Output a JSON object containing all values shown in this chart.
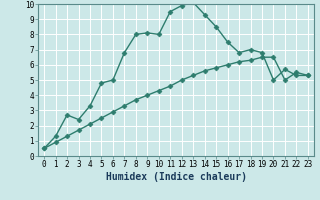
{
  "line1_x": [
    0,
    1,
    2,
    3,
    4,
    5,
    6,
    7,
    8,
    9,
    10,
    11,
    12,
    13,
    14,
    15,
    16,
    17,
    18,
    19,
    20,
    21,
    22,
    23
  ],
  "line1_y": [
    0.5,
    1.3,
    2.7,
    2.4,
    3.3,
    4.8,
    5.0,
    6.8,
    8.0,
    8.1,
    8.0,
    9.5,
    9.9,
    10.1,
    9.3,
    8.5,
    7.5,
    6.8,
    7.0,
    6.8,
    5.0,
    5.7,
    5.3,
    5.3
  ],
  "line2_x": [
    0,
    1,
    2,
    3,
    4,
    5,
    6,
    7,
    8,
    9,
    10,
    11,
    12,
    13,
    14,
    15,
    16,
    17,
    18,
    19,
    20,
    21,
    22,
    23
  ],
  "line2_y": [
    0.5,
    0.9,
    1.3,
    1.7,
    2.1,
    2.5,
    2.9,
    3.3,
    3.7,
    4.0,
    4.3,
    4.6,
    5.0,
    5.3,
    5.6,
    5.8,
    6.0,
    6.2,
    6.3,
    6.5,
    6.5,
    5.0,
    5.5,
    5.3
  ],
  "line_color": "#2e7d6e",
  "bg_color": "#cce8e8",
  "grid_color": "#ffffff",
  "xlabel": "Humidex (Indice chaleur)",
  "xlim": [
    -0.5,
    23.5
  ],
  "ylim": [
    0,
    10
  ],
  "xtick_vals": [
    0,
    1,
    2,
    3,
    4,
    5,
    6,
    7,
    8,
    9,
    10,
    11,
    12,
    13,
    14,
    15,
    16,
    17,
    18,
    19,
    20,
    21,
    22,
    23
  ],
  "xtick_labels": [
    "0",
    "1",
    "2",
    "3",
    "4",
    "5",
    "6",
    "7",
    "8",
    "9",
    "10",
    "11",
    "12",
    "13",
    "14",
    "15",
    "16",
    "17",
    "18",
    "19",
    "20",
    "21",
    "22",
    "23"
  ],
  "ytick_vals": [
    0,
    1,
    2,
    3,
    4,
    5,
    6,
    7,
    8,
    9,
    10
  ],
  "ytick_labels": [
    "0",
    "1",
    "2",
    "3",
    "4",
    "5",
    "6",
    "7",
    "8",
    "9",
    "10"
  ],
  "marker": "D",
  "marker_size": 2.5,
  "linewidth": 1.0,
  "tick_fontsize": 5.5,
  "xlabel_fontsize": 7.0
}
